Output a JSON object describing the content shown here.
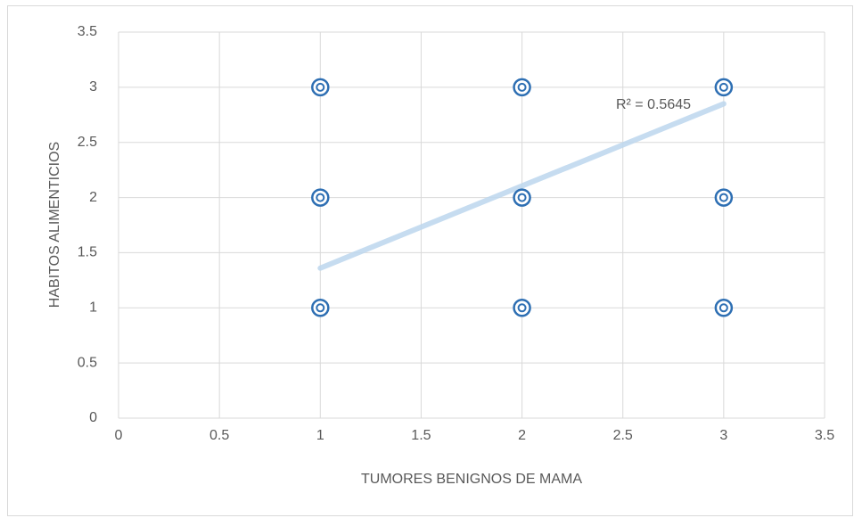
{
  "chart_data": {
    "type": "scatter",
    "x_label": "TUMORES BENIGNOS DE MAMA",
    "y_label": "HABITOS ALIMENTICIOS",
    "series": [
      {
        "color": "#2e6fb3",
        "x": [
          1,
          1,
          1,
          2,
          2,
          2,
          3,
          3,
          3
        ],
        "values": [
          3,
          2,
          1,
          3,
          2,
          1,
          3,
          2,
          1
        ]
      }
    ],
    "trendline": {
      "x": [
        1,
        3
      ],
      "y": [
        1.36,
        2.85
      ],
      "label": "R² = 0.5645",
      "color": "#bdd7ee"
    },
    "xlim": [
      0,
      3.5
    ],
    "xticks": [
      0,
      0.5,
      1,
      1.5,
      2,
      2.5,
      3,
      3.5
    ],
    "ylim": [
      0,
      3.5
    ],
    "yticks": [
      0,
      0.5,
      1,
      1.5,
      2,
      2.5,
      3,
      3.5
    ],
    "grid": true
  }
}
